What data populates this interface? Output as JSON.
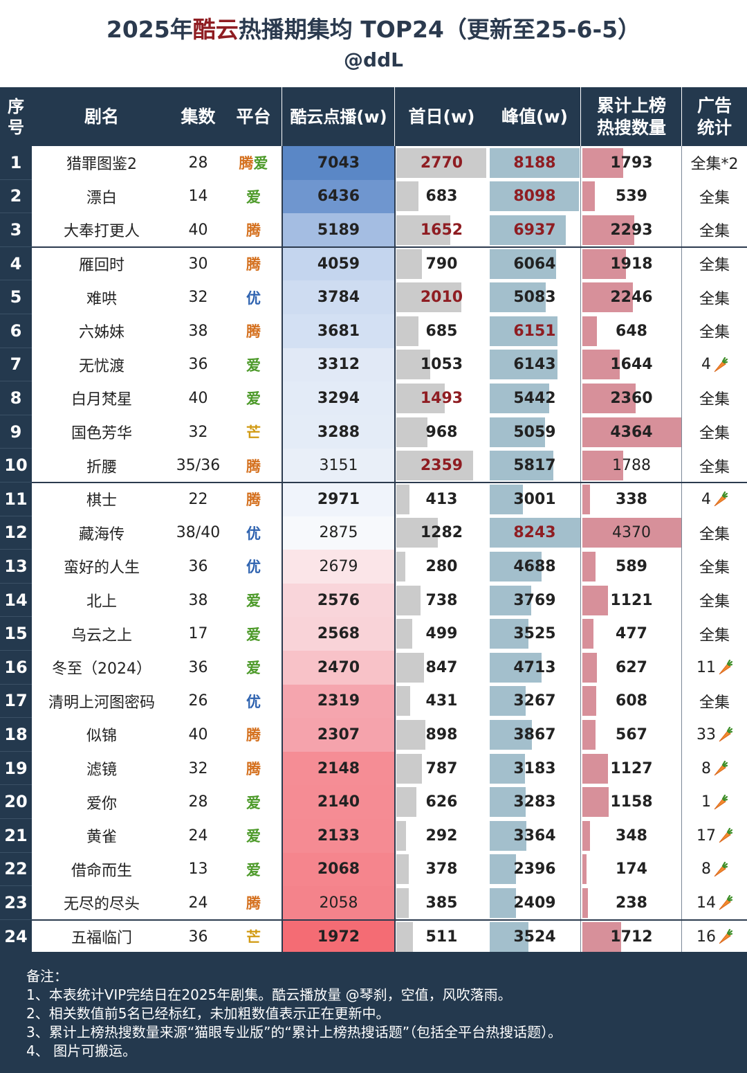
{
  "title": {
    "pre": "2025年",
    "highlight": "酷云",
    "post": "热播期集均 TOP24（更新至25-6-5）"
  },
  "subtitle": "@ddL",
  "headers": {
    "seq": [
      "序",
      "号"
    ],
    "name": "剧名",
    "episodes": "集数",
    "platform": "平台",
    "kuyun": "酷云点播(w)",
    "first_day": "首日(w)",
    "peak": "峰值(w)",
    "hot_search": [
      "累计上榜",
      "热搜数量"
    ],
    "ads": [
      "广告",
      "统计"
    ]
  },
  "colors": {
    "header_bg": "#24394e",
    "red_text": "#8f1d22",
    "first_bar": "#cbcbcb",
    "peak_bar": "#a3bfcc",
    "hot_bar": "#d7909a",
    "platform": {
      "腾": "#d4701e",
      "爱": "#4d9a2a",
      "优": "#2f63b0",
      "芒": "#d19a13"
    }
  },
  "ad_icon": "carrot-icon",
  "chart_data": {
    "type": "table",
    "columns": [
      "序号",
      "剧名",
      "集数",
      "平台",
      "酷云点播(w)",
      "首日(w)",
      "峰值(w)",
      "累计上榜热搜数量",
      "广告统计"
    ],
    "rows": [
      {
        "rank": "1",
        "name": "猎罪图鉴2",
        "episodes": "28",
        "platform": "腾爱",
        "kuyun": 7043,
        "kuyun_bold": true,
        "first": 2770,
        "first_red": true,
        "first_bold": true,
        "peak": 8188,
        "peak_red": true,
        "peak_bold": true,
        "hot": 1793,
        "hot_bold": true,
        "ads": "全集*2",
        "ads_carrot": false
      },
      {
        "rank": "2",
        "name": "漂白",
        "episodes": "14",
        "platform": "爱",
        "kuyun": 6436,
        "kuyun_bold": true,
        "first": 683,
        "first_red": false,
        "first_bold": true,
        "peak": 8098,
        "peak_red": true,
        "peak_bold": true,
        "hot": 539,
        "hot_bold": true,
        "ads": "全集",
        "ads_carrot": false
      },
      {
        "rank": "3",
        "name": "大奉打更人",
        "episodes": "40",
        "platform": "腾",
        "kuyun": 5189,
        "kuyun_bold": true,
        "first": 1652,
        "first_red": true,
        "first_bold": true,
        "peak": 6937,
        "peak_red": true,
        "peak_bold": true,
        "hot": 2293,
        "hot_bold": true,
        "ads": "全集",
        "ads_carrot": false
      },
      {
        "rank": "4",
        "name": "雁回时",
        "episodes": "30",
        "platform": "腾",
        "kuyun": 4059,
        "kuyun_bold": true,
        "first": 790,
        "first_red": false,
        "first_bold": true,
        "peak": 6064,
        "peak_red": false,
        "peak_bold": true,
        "hot": 1918,
        "hot_bold": true,
        "ads": "全集",
        "ads_carrot": false
      },
      {
        "rank": "5",
        "name": "难哄",
        "episodes": "32",
        "platform": "优",
        "kuyun": 3784,
        "kuyun_bold": true,
        "first": 2010,
        "first_red": true,
        "first_bold": true,
        "peak": 5083,
        "peak_red": false,
        "peak_bold": true,
        "hot": 2246,
        "hot_bold": true,
        "ads": "全集",
        "ads_carrot": false
      },
      {
        "rank": "6",
        "name": "六姊妹",
        "episodes": "38",
        "platform": "腾",
        "kuyun": 3681,
        "kuyun_bold": true,
        "first": 685,
        "first_red": false,
        "first_bold": true,
        "peak": 6151,
        "peak_red": true,
        "peak_bold": true,
        "hot": 648,
        "hot_bold": true,
        "ads": "全集",
        "ads_carrot": false
      },
      {
        "rank": "7",
        "name": "无忧渡",
        "episodes": "36",
        "platform": "爱",
        "kuyun": 3312,
        "kuyun_bold": true,
        "first": 1053,
        "first_red": false,
        "first_bold": true,
        "peak": 6143,
        "peak_red": false,
        "peak_bold": true,
        "hot": 1644,
        "hot_bold": true,
        "ads": "4",
        "ads_carrot": true
      },
      {
        "rank": "8",
        "name": "白月梵星",
        "episodes": "40",
        "platform": "爱",
        "kuyun": 3294,
        "kuyun_bold": true,
        "first": 1493,
        "first_red": true,
        "first_bold": true,
        "peak": 5442,
        "peak_red": false,
        "peak_bold": true,
        "hot": 2360,
        "hot_bold": true,
        "ads": "全集",
        "ads_carrot": false
      },
      {
        "rank": "9",
        "name": "国色芳华",
        "episodes": "32",
        "platform": "芒",
        "kuyun": 3288,
        "kuyun_bold": true,
        "first": 968,
        "first_red": false,
        "first_bold": true,
        "peak": 5059,
        "peak_red": false,
        "peak_bold": true,
        "hot": 4364,
        "hot_bold": true,
        "ads": "全集",
        "ads_carrot": false
      },
      {
        "rank": "10",
        "name": "折腰",
        "episodes": "35/36",
        "platform": "腾",
        "kuyun": 3151,
        "kuyun_bold": false,
        "first": 2359,
        "first_red": true,
        "first_bold": true,
        "peak": 5817,
        "peak_red": false,
        "peak_bold": true,
        "hot": 1788,
        "hot_bold": false,
        "ads": "全集",
        "ads_carrot": false
      },
      {
        "rank": "11",
        "name": "棋士",
        "episodes": "22",
        "platform": "腾",
        "kuyun": 2971,
        "kuyun_bold": true,
        "first": 413,
        "first_red": false,
        "first_bold": true,
        "peak": 3001,
        "peak_red": false,
        "peak_bold": true,
        "hot": 338,
        "hot_bold": true,
        "ads": "4",
        "ads_carrot": true
      },
      {
        "rank": "12",
        "name": "藏海传",
        "episodes": "38/40",
        "platform": "优",
        "kuyun": 2875,
        "kuyun_bold": false,
        "first": 1282,
        "first_red": false,
        "first_bold": true,
        "peak": 8243,
        "peak_red": true,
        "peak_bold": true,
        "hot": 4370,
        "hot_bold": false,
        "ads": "全集",
        "ads_carrot": false
      },
      {
        "rank": "13",
        "name": "蛮好的人生",
        "episodes": "36",
        "platform": "优",
        "kuyun": 2679,
        "kuyun_bold": false,
        "first": 280,
        "first_red": false,
        "first_bold": true,
        "peak": 4688,
        "peak_red": false,
        "peak_bold": true,
        "hot": 589,
        "hot_bold": true,
        "ads": "全集",
        "ads_carrot": false
      },
      {
        "rank": "14",
        "name": "北上",
        "episodes": "38",
        "platform": "爱",
        "kuyun": 2576,
        "kuyun_bold": true,
        "first": 738,
        "first_red": false,
        "first_bold": true,
        "peak": 3769,
        "peak_red": false,
        "peak_bold": true,
        "hot": 1121,
        "hot_bold": true,
        "ads": "全集",
        "ads_carrot": false
      },
      {
        "rank": "15",
        "name": "乌云之上",
        "episodes": "17",
        "platform": "爱",
        "kuyun": 2568,
        "kuyun_bold": true,
        "first": 499,
        "first_red": false,
        "first_bold": true,
        "peak": 3525,
        "peak_red": false,
        "peak_bold": true,
        "hot": 477,
        "hot_bold": true,
        "ads": "全集",
        "ads_carrot": false
      },
      {
        "rank": "16",
        "name": "冬至（2024）",
        "episodes": "36",
        "platform": "爱",
        "kuyun": 2470,
        "kuyun_bold": true,
        "first": 847,
        "first_red": false,
        "first_bold": true,
        "peak": 4713,
        "peak_red": false,
        "peak_bold": true,
        "hot": 627,
        "hot_bold": true,
        "ads": "11",
        "ads_carrot": true
      },
      {
        "rank": "17",
        "name": "清明上河图密码",
        "episodes": "26",
        "platform": "优",
        "kuyun": 2319,
        "kuyun_bold": true,
        "first": 431,
        "first_red": false,
        "first_bold": true,
        "peak": 3267,
        "peak_red": false,
        "peak_bold": true,
        "hot": 608,
        "hot_bold": true,
        "ads": "全集",
        "ads_carrot": false
      },
      {
        "rank": "18",
        "name": "似锦",
        "episodes": "40",
        "platform": "腾",
        "kuyun": 2307,
        "kuyun_bold": true,
        "first": 898,
        "first_red": false,
        "first_bold": true,
        "peak": 3867,
        "peak_red": false,
        "peak_bold": true,
        "hot": 567,
        "hot_bold": true,
        "ads": "33",
        "ads_carrot": true
      },
      {
        "rank": "19",
        "name": "滤镜",
        "episodes": "32",
        "platform": "腾",
        "kuyun": 2148,
        "kuyun_bold": true,
        "first": 787,
        "first_red": false,
        "first_bold": true,
        "peak": 3183,
        "peak_red": false,
        "peak_bold": true,
        "hot": 1127,
        "hot_bold": true,
        "ads": "8",
        "ads_carrot": true
      },
      {
        "rank": "20",
        "name": "爱你",
        "episodes": "28",
        "platform": "爱",
        "kuyun": 2140,
        "kuyun_bold": true,
        "first": 626,
        "first_red": false,
        "first_bold": true,
        "peak": 3283,
        "peak_red": false,
        "peak_bold": true,
        "hot": 1158,
        "hot_bold": true,
        "ads": "1",
        "ads_carrot": true
      },
      {
        "rank": "21",
        "name": "黄雀",
        "episodes": "24",
        "platform": "爱",
        "kuyun": 2133,
        "kuyun_bold": true,
        "first": 292,
        "first_red": false,
        "first_bold": true,
        "peak": 3364,
        "peak_red": false,
        "peak_bold": true,
        "hot": 348,
        "hot_bold": true,
        "ads": "17",
        "ads_carrot": true
      },
      {
        "rank": "22",
        "name": "借命而生",
        "episodes": "13",
        "platform": "爱",
        "kuyun": 2068,
        "kuyun_bold": true,
        "first": 378,
        "first_red": false,
        "first_bold": true,
        "peak": 2396,
        "peak_red": false,
        "peak_bold": true,
        "hot": 174,
        "hot_bold": true,
        "ads": "8",
        "ads_carrot": true
      },
      {
        "rank": "23",
        "name": "无尽的尽头",
        "episodes": "24",
        "platform": "腾",
        "kuyun": 2058,
        "kuyun_bold": false,
        "first": 385,
        "first_red": false,
        "first_bold": true,
        "peak": 2409,
        "peak_red": false,
        "peak_bold": true,
        "hot": 238,
        "hot_bold": true,
        "ads": "14",
        "ads_carrot": true
      },
      {
        "rank": "24",
        "name": "五福临门",
        "episodes": "36",
        "platform": "芒",
        "kuyun": 1972,
        "kuyun_bold": true,
        "first": 511,
        "first_red": false,
        "first_bold": true,
        "peak": 3524,
        "peak_red": false,
        "peak_bold": true,
        "hot": 1712,
        "hot_bold": true,
        "ads": "16",
        "ads_carrot": true
      }
    ],
    "first_max": 2770,
    "peak_max": 8243,
    "hot_max": 4370
  },
  "notes": [
    "备注：",
    "1、本表统计VIP完结日在2025年剧集。酷云播放量 @琴刹，空值，风吹落雨。",
    "2、相关数值前5名已经标红，未加粗数值表示正在更新中。",
    "3、累计上榜热搜数量来源“猫眼专业版”的“累计上榜热搜话题”（包括全平台热搜话题）。",
    "4、 图片可搬运。"
  ]
}
